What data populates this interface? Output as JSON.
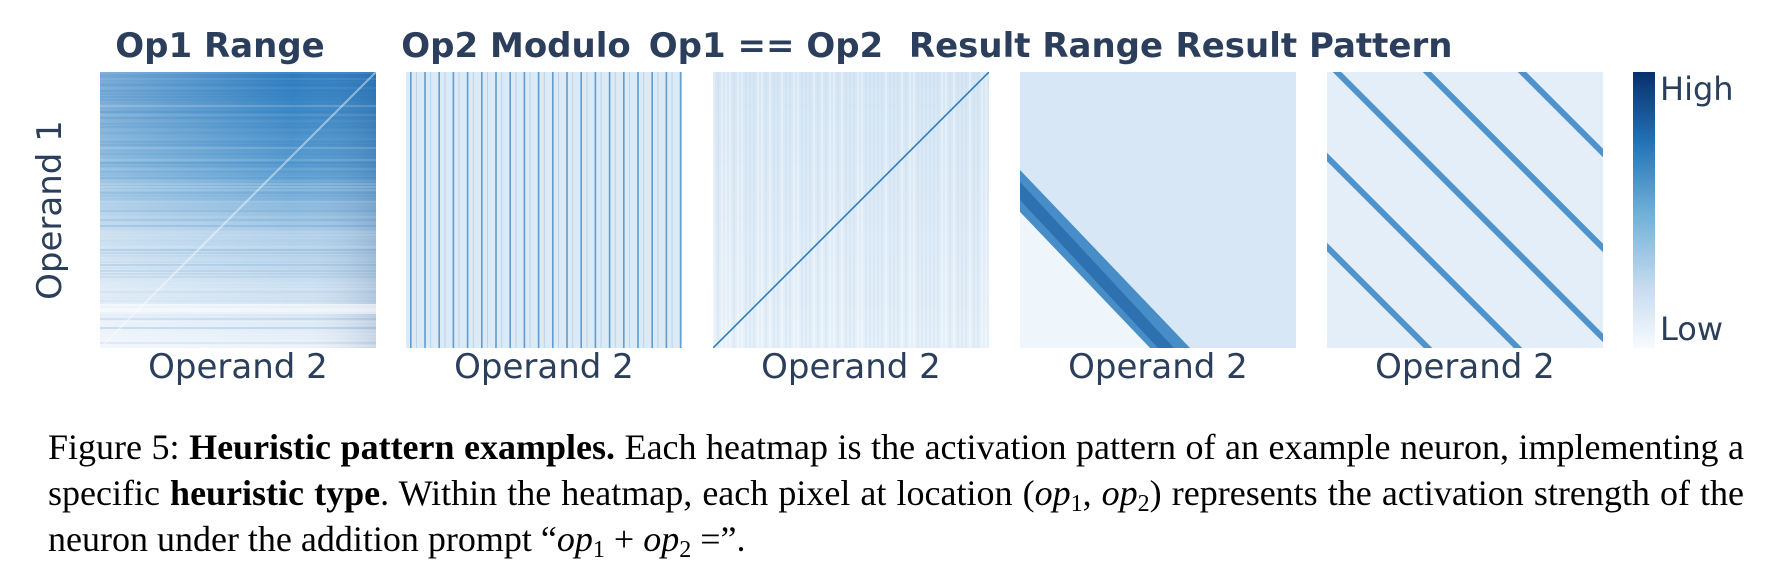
{
  "figure": {
    "panels": [
      {
        "title": "Op1 Range",
        "xlabel": "Operand 2",
        "pattern": "op1-range"
      },
      {
        "title": "Op2 Modulo",
        "xlabel": "Operand 2",
        "pattern": "op2-modulo"
      },
      {
        "title": "Op1 == Op2",
        "xlabel": "Operand 2",
        "pattern": "equality-diagonal"
      },
      {
        "title": "Result Range",
        "xlabel": "Operand 2",
        "pattern": "result-range-band"
      },
      {
        "title": "Result Pattern",
        "xlabel": "Operand 2",
        "pattern": "result-periodic-bands"
      }
    ],
    "ylabel": "Operand 1",
    "colorbar": {
      "high": "High",
      "low": "Low",
      "colormap": "Blues"
    },
    "colors": {
      "text": "#2b3f5c",
      "dark": "#08306b",
      "light": "#f7fbff"
    }
  },
  "caption": {
    "label": "Figure 5:",
    "bold_title": "Heuristic pattern examples.",
    "text1": " Each heatmap is the activation pattern of an example neuron, implementing a specific ",
    "bold_term": "heuristic type",
    "text2": ". Within the heatmap, each pixel at location (",
    "loc_var1": "op",
    "loc_sub1": "1",
    "loc_sep": ", ",
    "loc_var2": "op",
    "loc_sub2": "2",
    "text3": ") represents the activation strength of the neuron under the addition prompt “",
    "prompt_var1": "op",
    "prompt_sub1": "1",
    "prompt_plus": " + ",
    "prompt_var2": "op",
    "prompt_sub2": "2",
    "prompt_eq": " =",
    "text4": "”."
  }
}
